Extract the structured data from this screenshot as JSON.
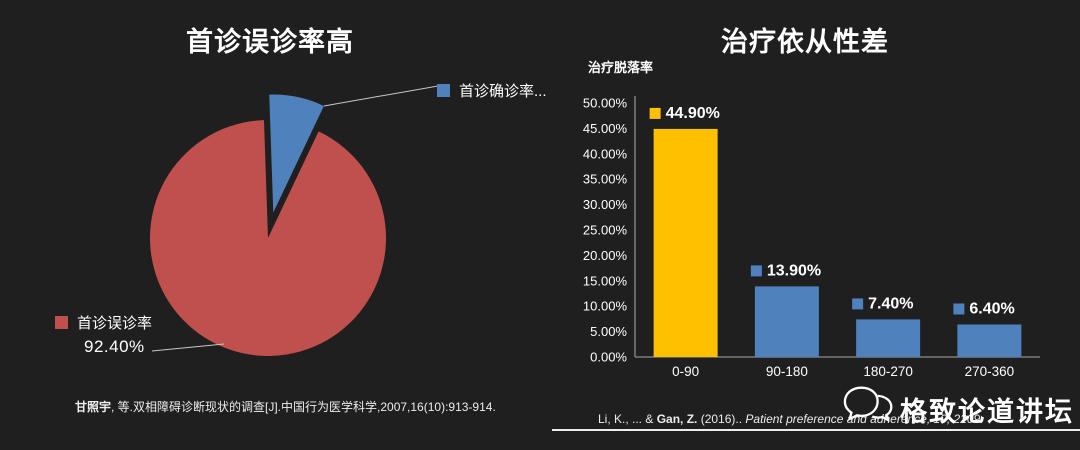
{
  "slide_background": "#1f1f1f",
  "chart_data": [
    {
      "type": "pie",
      "title": "首诊误诊率高",
      "slices": [
        {
          "label": "首诊误诊率",
          "value": 92.4,
          "data_label": "92.40%",
          "color": "#C0504D",
          "exploded": false
        },
        {
          "label": "首诊确诊率",
          "legend_label": "首诊确诊率...",
          "value": 7.6,
          "color": "#4F81BD",
          "exploded": true
        }
      ],
      "legend_position": "manual",
      "grid": false
    },
    {
      "type": "bar",
      "title": "治疗依从性差",
      "ylabel": "治疗脱落率",
      "categories": [
        "0-90",
        "90-180",
        "180-270",
        "270-360"
      ],
      "values": [
        44.9,
        13.9,
        7.4,
        6.4
      ],
      "value_labels": [
        "44.90%",
        "13.90%",
        "7.40%",
        "6.40%"
      ],
      "colors": [
        "#FFC000",
        "#4F81BD",
        "#4F81BD",
        "#4F81BD"
      ],
      "ylim": [
        0,
        50
      ],
      "ytick_step": 5,
      "ytick_format": "0.00%",
      "grid": false,
      "legend_position": "none"
    }
  ],
  "citations": {
    "left": {
      "bold": "甘照宇",
      "rest": ", 等.双相障碍诊断现状的调查[J].中国行为医学科学,2007,16(10):913-914."
    },
    "right": {
      "pre": "Li, K., ... & ",
      "bold": "Gan, Z.",
      "mid": " (2016).. ",
      "italic": "Patient preference and adherence, 10, 2209."
    }
  },
  "watermark": {
    "text": "格致论道讲坛"
  }
}
